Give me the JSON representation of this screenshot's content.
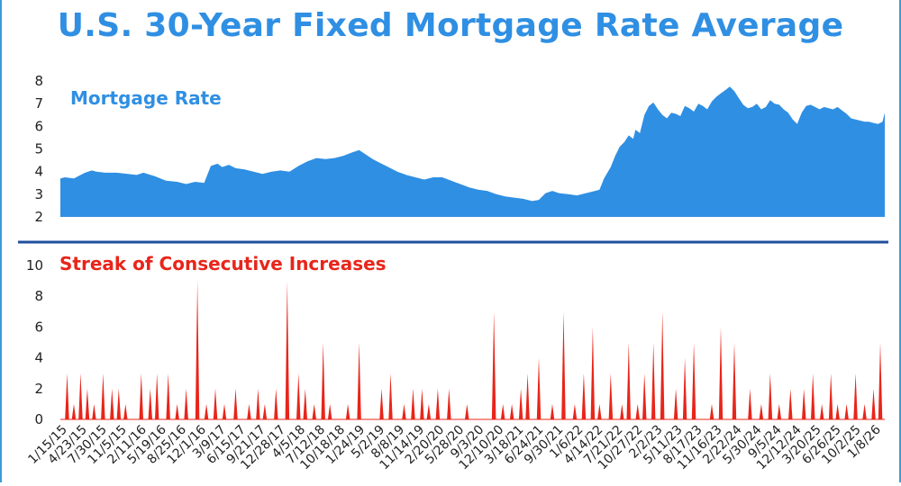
{
  "title": "U.S. 30-Year Fixed Mortgage Rate Average",
  "colors": {
    "title": "#2f8fe3",
    "rate": "#2f8fe3",
    "streak": "#e8251a",
    "divider": "#1f4f9c"
  },
  "chart_data": [
    {
      "type": "area",
      "series": [
        {
          "name": "Mortgage Rate"
        }
      ],
      "ylim": [
        2,
        8
      ],
      "yticks": [
        2,
        3,
        4,
        5,
        6,
        7,
        8
      ],
      "points": [
        [
          0,
          3.7
        ],
        [
          2,
          3.75
        ],
        [
          6,
          3.7
        ],
        [
          11,
          3.95
        ],
        [
          14,
          4.05
        ],
        [
          16,
          4.0
        ],
        [
          20,
          3.95
        ],
        [
          25,
          3.95
        ],
        [
          30,
          3.9
        ],
        [
          34,
          3.85
        ],
        [
          37,
          3.95
        ],
        [
          42,
          3.8
        ],
        [
          47,
          3.6
        ],
        [
          52,
          3.55
        ],
        [
          56,
          3.45
        ],
        [
          60,
          3.55
        ],
        [
          64,
          3.5
        ],
        [
          67,
          4.25
        ],
        [
          70,
          4.35
        ],
        [
          72,
          4.2
        ],
        [
          75,
          4.3
        ],
        [
          78,
          4.15
        ],
        [
          82,
          4.1
        ],
        [
          86,
          4.0
        ],
        [
          90,
          3.9
        ],
        [
          94,
          4.0
        ],
        [
          98,
          4.05
        ],
        [
          102,
          4.0
        ],
        [
          106,
          4.25
        ],
        [
          110,
          4.45
        ],
        [
          114,
          4.6
        ],
        [
          118,
          4.55
        ],
        [
          122,
          4.6
        ],
        [
          126,
          4.7
        ],
        [
          130,
          4.85
        ],
        [
          133,
          4.95
        ],
        [
          136,
          4.75
        ],
        [
          139,
          4.55
        ],
        [
          142,
          4.4
        ],
        [
          146,
          4.2
        ],
        [
          150,
          4.0
        ],
        [
          154,
          3.85
        ],
        [
          158,
          3.75
        ],
        [
          162,
          3.65
        ],
        [
          166,
          3.75
        ],
        [
          170,
          3.75
        ],
        [
          174,
          3.6
        ],
        [
          178,
          3.45
        ],
        [
          182,
          3.3
        ],
        [
          186,
          3.2
        ],
        [
          190,
          3.15
        ],
        [
          194,
          3.0
        ],
        [
          198,
          2.9
        ],
        [
          202,
          2.85
        ],
        [
          206,
          2.8
        ],
        [
          210,
          2.7
        ],
        [
          213,
          2.75
        ],
        [
          216,
          3.05
        ],
        [
          219,
          3.15
        ],
        [
          222,
          3.05
        ],
        [
          226,
          3.0
        ],
        [
          230,
          2.95
        ],
        [
          234,
          3.05
        ],
        [
          238,
          3.15
        ],
        [
          240,
          3.2
        ],
        [
          242,
          3.7
        ],
        [
          245,
          4.2
        ],
        [
          247,
          4.7
        ],
        [
          249,
          5.1
        ],
        [
          251,
          5.3
        ],
        [
          253,
          5.6
        ],
        [
          255,
          5.45
        ],
        [
          256,
          5.85
        ],
        [
          258,
          5.7
        ],
        [
          260,
          6.5
        ],
        [
          262,
          6.9
        ],
        [
          264,
          7.05
        ],
        [
          266,
          6.75
        ],
        [
          268,
          6.5
        ],
        [
          270,
          6.35
        ],
        [
          272,
          6.6
        ],
        [
          274,
          6.55
        ],
        [
          276,
          6.45
        ],
        [
          278,
          6.9
        ],
        [
          280,
          6.8
        ],
        [
          282,
          6.65
        ],
        [
          284,
          7.0
        ],
        [
          286,
          6.9
        ],
        [
          288,
          6.75
        ],
        [
          290,
          7.1
        ],
        [
          292,
          7.3
        ],
        [
          294,
          7.45
        ],
        [
          296,
          7.6
        ],
        [
          298,
          7.75
        ],
        [
          300,
          7.55
        ],
        [
          302,
          7.25
        ],
        [
          304,
          6.95
        ],
        [
          306,
          6.8
        ],
        [
          308,
          6.85
        ],
        [
          310,
          7.0
        ],
        [
          312,
          6.75
        ],
        [
          314,
          6.85
        ],
        [
          316,
          7.15
        ],
        [
          318,
          7.0
        ],
        [
          320,
          6.95
        ],
        [
          322,
          6.75
        ],
        [
          324,
          6.6
        ],
        [
          326,
          6.3
        ],
        [
          328,
          6.1
        ],
        [
          330,
          6.6
        ],
        [
          332,
          6.9
        ],
        [
          334,
          6.95
        ],
        [
          336,
          6.85
        ],
        [
          338,
          6.75
        ],
        [
          340,
          6.85
        ],
        [
          342,
          6.8
        ],
        [
          344,
          6.75
        ],
        [
          346,
          6.85
        ],
        [
          348,
          6.7
        ],
        [
          350,
          6.55
        ],
        [
          352,
          6.35
        ],
        [
          354,
          6.3
        ],
        [
          356,
          6.25
        ],
        [
          358,
          6.2
        ],
        [
          360,
          6.2
        ],
        [
          362,
          6.15
        ],
        [
          364,
          6.1
        ],
        [
          366,
          6.2
        ],
        [
          367,
          6.6
        ]
      ]
    },
    {
      "type": "area",
      "series": [
        {
          "name": "Streak of Consecutive Increases"
        }
      ],
      "ylim": [
        0,
        10
      ],
      "yticks": [
        0,
        2,
        4,
        6,
        8,
        10
      ],
      "spikes": [
        [
          3,
          3
        ],
        [
          6,
          1
        ],
        [
          9,
          3
        ],
        [
          12,
          2
        ],
        [
          15,
          1
        ],
        [
          19,
          3
        ],
        [
          23,
          2
        ],
        [
          26,
          2
        ],
        [
          29,
          1
        ],
        [
          36,
          3
        ],
        [
          40,
          2
        ],
        [
          43,
          3
        ],
        [
          48,
          3
        ],
        [
          52,
          1
        ],
        [
          56,
          2
        ],
        [
          61,
          9
        ],
        [
          65,
          1
        ],
        [
          69,
          2
        ],
        [
          73,
          1
        ],
        [
          78,
          2
        ],
        [
          84,
          1
        ],
        [
          88,
          2
        ],
        [
          91,
          1
        ],
        [
          96,
          2
        ],
        [
          101,
          9
        ],
        [
          106,
          3
        ],
        [
          109,
          2
        ],
        [
          113,
          1
        ],
        [
          117,
          5
        ],
        [
          120,
          1
        ],
        [
          128,
          1
        ],
        [
          133,
          5
        ],
        [
          143,
          2
        ],
        [
          147,
          3
        ],
        [
          153,
          1
        ],
        [
          157,
          2
        ],
        [
          161,
          2
        ],
        [
          164,
          1
        ],
        [
          168,
          2
        ],
        [
          173,
          2
        ],
        [
          181,
          1
        ],
        [
          193,
          7
        ],
        [
          197,
          1
        ],
        [
          201,
          1
        ],
        [
          205,
          2
        ],
        [
          208,
          3
        ],
        [
          213,
          4
        ],
        [
          219,
          1
        ],
        [
          224,
          7
        ],
        [
          229,
          1
        ],
        [
          233,
          3
        ],
        [
          237,
          6
        ],
        [
          240,
          1
        ],
        [
          245,
          3
        ],
        [
          250,
          1
        ],
        [
          253,
          5
        ],
        [
          257,
          1
        ],
        [
          260,
          3
        ],
        [
          264,
          5
        ],
        [
          268,
          7
        ],
        [
          274,
          2
        ],
        [
          278,
          4
        ],
        [
          282,
          5
        ],
        [
          290,
          1
        ],
        [
          294,
          6
        ],
        [
          300,
          5
        ],
        [
          307,
          2
        ],
        [
          312,
          1
        ],
        [
          316,
          3
        ],
        [
          320,
          1
        ],
        [
          325,
          2
        ],
        [
          331,
          2
        ],
        [
          335,
          3
        ],
        [
          339,
          1
        ],
        [
          343,
          3
        ],
        [
          346,
          1
        ],
        [
          350,
          1
        ],
        [
          354,
          3
        ],
        [
          358,
          1
        ],
        [
          362,
          2
        ],
        [
          365,
          5
        ]
      ]
    }
  ],
  "x_axis": {
    "max": 367,
    "labels": [
      "1/15/15",
      "4/23/15",
      "7/30/15",
      "11/5/15",
      "2/11/16",
      "5/19/16",
      "8/25/16",
      "12/1/16",
      "3/9/17",
      "6/15/17",
      "9/21/17",
      "12/28/17",
      "4/5/18",
      "7/12/18",
      "10/18/18",
      "1/24/19",
      "5/2/19",
      "8/8/19",
      "11/14/19",
      "2/20/20",
      "5/28/20",
      "9/3/20",
      "12/10/20",
      "3/18/21",
      "6/24/21",
      "9/30/21",
      "1/6/22",
      "4/14/22",
      "7/21/22",
      "10/27/22",
      "2/2/23",
      "5/11/23",
      "8/17/23",
      "11/16/23",
      "2/22/24",
      "5/30/24",
      "9/5/24",
      "12/12/24",
      "3/20/25",
      "6/26/25",
      "10/2/25",
      "1/8/26"
    ]
  }
}
